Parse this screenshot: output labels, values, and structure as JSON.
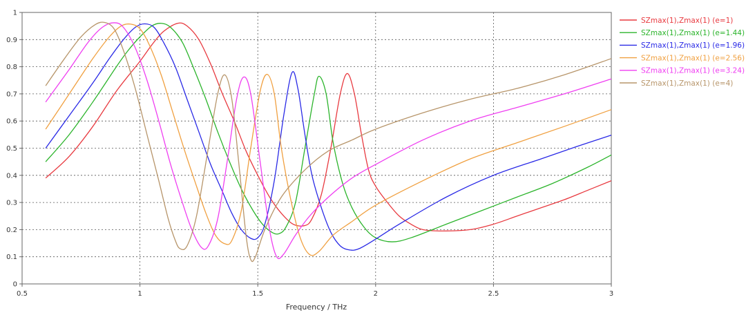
{
  "chart_data": {
    "type": "line",
    "title": "",
    "xlabel": "Frequency / THz",
    "ylabel": "",
    "xlim": [
      0.5,
      3
    ],
    "ylim": [
      0,
      1
    ],
    "x_ticks": [
      "0.5",
      "1",
      "1.5",
      "2",
      "2.5",
      "3"
    ],
    "y_ticks": [
      "0",
      "0.1",
      "0.2",
      "0.3",
      "0.4",
      "0.5",
      "0.6",
      "0.7",
      "0.8",
      "0.9",
      "1"
    ],
    "grid": true,
    "legend_position": "right",
    "series": [
      {
        "name": "SZmax(1),Zmax(1) (e=1)",
        "color": "#e8393f",
        "points": [
          [
            0.6,
            0.39
          ],
          [
            0.7,
            0.47
          ],
          [
            0.8,
            0.58
          ],
          [
            0.9,
            0.71
          ],
          [
            1.0,
            0.82
          ],
          [
            1.05,
            0.88
          ],
          [
            1.1,
            0.93
          ],
          [
            1.16,
            0.96
          ],
          [
            1.2,
            0.95
          ],
          [
            1.25,
            0.9
          ],
          [
            1.3,
            0.81
          ],
          [
            1.35,
            0.7
          ],
          [
            1.4,
            0.6
          ],
          [
            1.45,
            0.49
          ],
          [
            1.5,
            0.4
          ],
          [
            1.55,
            0.32
          ],
          [
            1.6,
            0.26
          ],
          [
            1.65,
            0.22
          ],
          [
            1.7,
            0.215
          ],
          [
            1.73,
            0.24
          ],
          [
            1.77,
            0.33
          ],
          [
            1.81,
            0.5
          ],
          [
            1.85,
            0.7
          ],
          [
            1.88,
            0.775
          ],
          [
            1.91,
            0.7
          ],
          [
            1.94,
            0.55
          ],
          [
            1.97,
            0.42
          ],
          [
            2.0,
            0.36
          ],
          [
            2.05,
            0.3
          ],
          [
            2.1,
            0.25
          ],
          [
            2.15,
            0.22
          ],
          [
            2.2,
            0.2
          ],
          [
            2.28,
            0.195
          ],
          [
            2.4,
            0.2
          ],
          [
            2.5,
            0.22
          ],
          [
            2.6,
            0.25
          ],
          [
            2.7,
            0.28
          ],
          [
            2.8,
            0.31
          ],
          [
            2.9,
            0.345
          ],
          [
            3.0,
            0.38
          ]
        ]
      },
      {
        "name": "SZmax(1),Zmax(1) (e=1.44)",
        "color": "#2bb42b",
        "points": [
          [
            0.6,
            0.45
          ],
          [
            0.7,
            0.55
          ],
          [
            0.8,
            0.67
          ],
          [
            0.9,
            0.8
          ],
          [
            0.95,
            0.86
          ],
          [
            1.0,
            0.91
          ],
          [
            1.05,
            0.95
          ],
          [
            1.09,
            0.96
          ],
          [
            1.13,
            0.945
          ],
          [
            1.18,
            0.89
          ],
          [
            1.23,
            0.79
          ],
          [
            1.28,
            0.68
          ],
          [
            1.33,
            0.56
          ],
          [
            1.38,
            0.45
          ],
          [
            1.43,
            0.35
          ],
          [
            1.48,
            0.27
          ],
          [
            1.52,
            0.22
          ],
          [
            1.56,
            0.19
          ],
          [
            1.59,
            0.185
          ],
          [
            1.62,
            0.21
          ],
          [
            1.66,
            0.3
          ],
          [
            1.7,
            0.5
          ],
          [
            1.74,
            0.7
          ],
          [
            1.76,
            0.765
          ],
          [
            1.79,
            0.7
          ],
          [
            1.82,
            0.52
          ],
          [
            1.86,
            0.37
          ],
          [
            1.9,
            0.28
          ],
          [
            1.95,
            0.21
          ],
          [
            2.0,
            0.17
          ],
          [
            2.07,
            0.155
          ],
          [
            2.15,
            0.17
          ],
          [
            2.3,
            0.22
          ],
          [
            2.45,
            0.27
          ],
          [
            2.6,
            0.32
          ],
          [
            2.75,
            0.37
          ],
          [
            2.9,
            0.43
          ],
          [
            3.0,
            0.475
          ]
        ]
      },
      {
        "name": "SZmax(1),Zmax(1) (e=1.96)",
        "color": "#2929e6",
        "points": [
          [
            0.6,
            0.5
          ],
          [
            0.7,
            0.62
          ],
          [
            0.8,
            0.74
          ],
          [
            0.87,
            0.83
          ],
          [
            0.93,
            0.9
          ],
          [
            0.98,
            0.945
          ],
          [
            1.02,
            0.958
          ],
          [
            1.06,
            0.945
          ],
          [
            1.1,
            0.89
          ],
          [
            1.15,
            0.8
          ],
          [
            1.2,
            0.68
          ],
          [
            1.25,
            0.56
          ],
          [
            1.3,
            0.44
          ],
          [
            1.35,
            0.34
          ],
          [
            1.39,
            0.26
          ],
          [
            1.43,
            0.2
          ],
          [
            1.47,
            0.168
          ],
          [
            1.5,
            0.17
          ],
          [
            1.53,
            0.22
          ],
          [
            1.57,
            0.38
          ],
          [
            1.61,
            0.62
          ],
          [
            1.645,
            0.778
          ],
          [
            1.67,
            0.72
          ],
          [
            1.7,
            0.55
          ],
          [
            1.73,
            0.4
          ],
          [
            1.77,
            0.28
          ],
          [
            1.81,
            0.19
          ],
          [
            1.85,
            0.14
          ],
          [
            1.89,
            0.125
          ],
          [
            1.93,
            0.13
          ],
          [
            2.0,
            0.165
          ],
          [
            2.1,
            0.22
          ],
          [
            2.3,
            0.32
          ],
          [
            2.5,
            0.4
          ],
          [
            2.7,
            0.46
          ],
          [
            2.85,
            0.505
          ],
          [
            3.0,
            0.548
          ]
        ]
      },
      {
        "name": "SZmax(1),Zmax(1) (e=2.56)",
        "color": "#f0a040",
        "points": [
          [
            0.6,
            0.57
          ],
          [
            0.7,
            0.7
          ],
          [
            0.8,
            0.83
          ],
          [
            0.87,
            0.91
          ],
          [
            0.92,
            0.95
          ],
          [
            0.96,
            0.957
          ],
          [
            1.0,
            0.94
          ],
          [
            1.04,
            0.88
          ],
          [
            1.09,
            0.77
          ],
          [
            1.14,
            0.63
          ],
          [
            1.19,
            0.49
          ],
          [
            1.24,
            0.36
          ],
          [
            1.28,
            0.26
          ],
          [
            1.32,
            0.18
          ],
          [
            1.36,
            0.148
          ],
          [
            1.39,
            0.16
          ],
          [
            1.43,
            0.27
          ],
          [
            1.47,
            0.5
          ],
          [
            1.51,
            0.71
          ],
          [
            1.54,
            0.772
          ],
          [
            1.57,
            0.7
          ],
          [
            1.6,
            0.5
          ],
          [
            1.64,
            0.31
          ],
          [
            1.68,
            0.17
          ],
          [
            1.72,
            0.108
          ],
          [
            1.76,
            0.12
          ],
          [
            1.82,
            0.18
          ],
          [
            1.9,
            0.23
          ],
          [
            2.0,
            0.29
          ],
          [
            2.2,
            0.38
          ],
          [
            2.4,
            0.46
          ],
          [
            2.6,
            0.52
          ],
          [
            2.8,
            0.58
          ],
          [
            3.0,
            0.642
          ]
        ]
      },
      {
        "name": "SZmax(1),Zmax(1) (e=3.24)",
        "color": "#ef3ef1",
        "points": [
          [
            0.6,
            0.67
          ],
          [
            0.7,
            0.79
          ],
          [
            0.78,
            0.89
          ],
          [
            0.84,
            0.945
          ],
          [
            0.89,
            0.962
          ],
          [
            0.93,
            0.945
          ],
          [
            0.98,
            0.87
          ],
          [
            1.03,
            0.75
          ],
          [
            1.08,
            0.6
          ],
          [
            1.13,
            0.44
          ],
          [
            1.18,
            0.3
          ],
          [
            1.22,
            0.2
          ],
          [
            1.26,
            0.135
          ],
          [
            1.29,
            0.14
          ],
          [
            1.33,
            0.24
          ],
          [
            1.37,
            0.45
          ],
          [
            1.41,
            0.68
          ],
          [
            1.44,
            0.762
          ],
          [
            1.47,
            0.7
          ],
          [
            1.51,
            0.45
          ],
          [
            1.55,
            0.2
          ],
          [
            1.58,
            0.1
          ],
          [
            1.61,
            0.11
          ],
          [
            1.66,
            0.18
          ],
          [
            1.72,
            0.25
          ],
          [
            1.8,
            0.32
          ],
          [
            1.9,
            0.39
          ],
          [
            2.0,
            0.44
          ],
          [
            2.2,
            0.53
          ],
          [
            2.4,
            0.6
          ],
          [
            2.6,
            0.65
          ],
          [
            2.8,
            0.7
          ],
          [
            3.0,
            0.755
          ]
        ]
      },
      {
        "name": "SZmax(1),Zmax(1) (e=4)",
        "color": "#b7956a",
        "points": [
          [
            0.6,
            0.73
          ],
          [
            0.68,
            0.83
          ],
          [
            0.75,
            0.91
          ],
          [
            0.81,
            0.955
          ],
          [
            0.85,
            0.963
          ],
          [
            0.89,
            0.94
          ],
          [
            0.93,
            0.86
          ],
          [
            0.98,
            0.72
          ],
          [
            1.03,
            0.55
          ],
          [
            1.08,
            0.38
          ],
          [
            1.12,
            0.24
          ],
          [
            1.15,
            0.16
          ],
          [
            1.17,
            0.13
          ],
          [
            1.2,
            0.14
          ],
          [
            1.24,
            0.25
          ],
          [
            1.29,
            0.5
          ],
          [
            1.33,
            0.7
          ],
          [
            1.36,
            0.77
          ],
          [
            1.39,
            0.68
          ],
          [
            1.42,
            0.44
          ],
          [
            1.45,
            0.18
          ],
          [
            1.47,
            0.09
          ],
          [
            1.49,
            0.1
          ],
          [
            1.53,
            0.2
          ],
          [
            1.6,
            0.32
          ],
          [
            1.7,
            0.42
          ],
          [
            1.8,
            0.49
          ],
          [
            1.9,
            0.53
          ],
          [
            2.0,
            0.57
          ],
          [
            2.2,
            0.63
          ],
          [
            2.4,
            0.68
          ],
          [
            2.6,
            0.72
          ],
          [
            2.8,
            0.77
          ],
          [
            3.0,
            0.83
          ]
        ]
      }
    ]
  }
}
